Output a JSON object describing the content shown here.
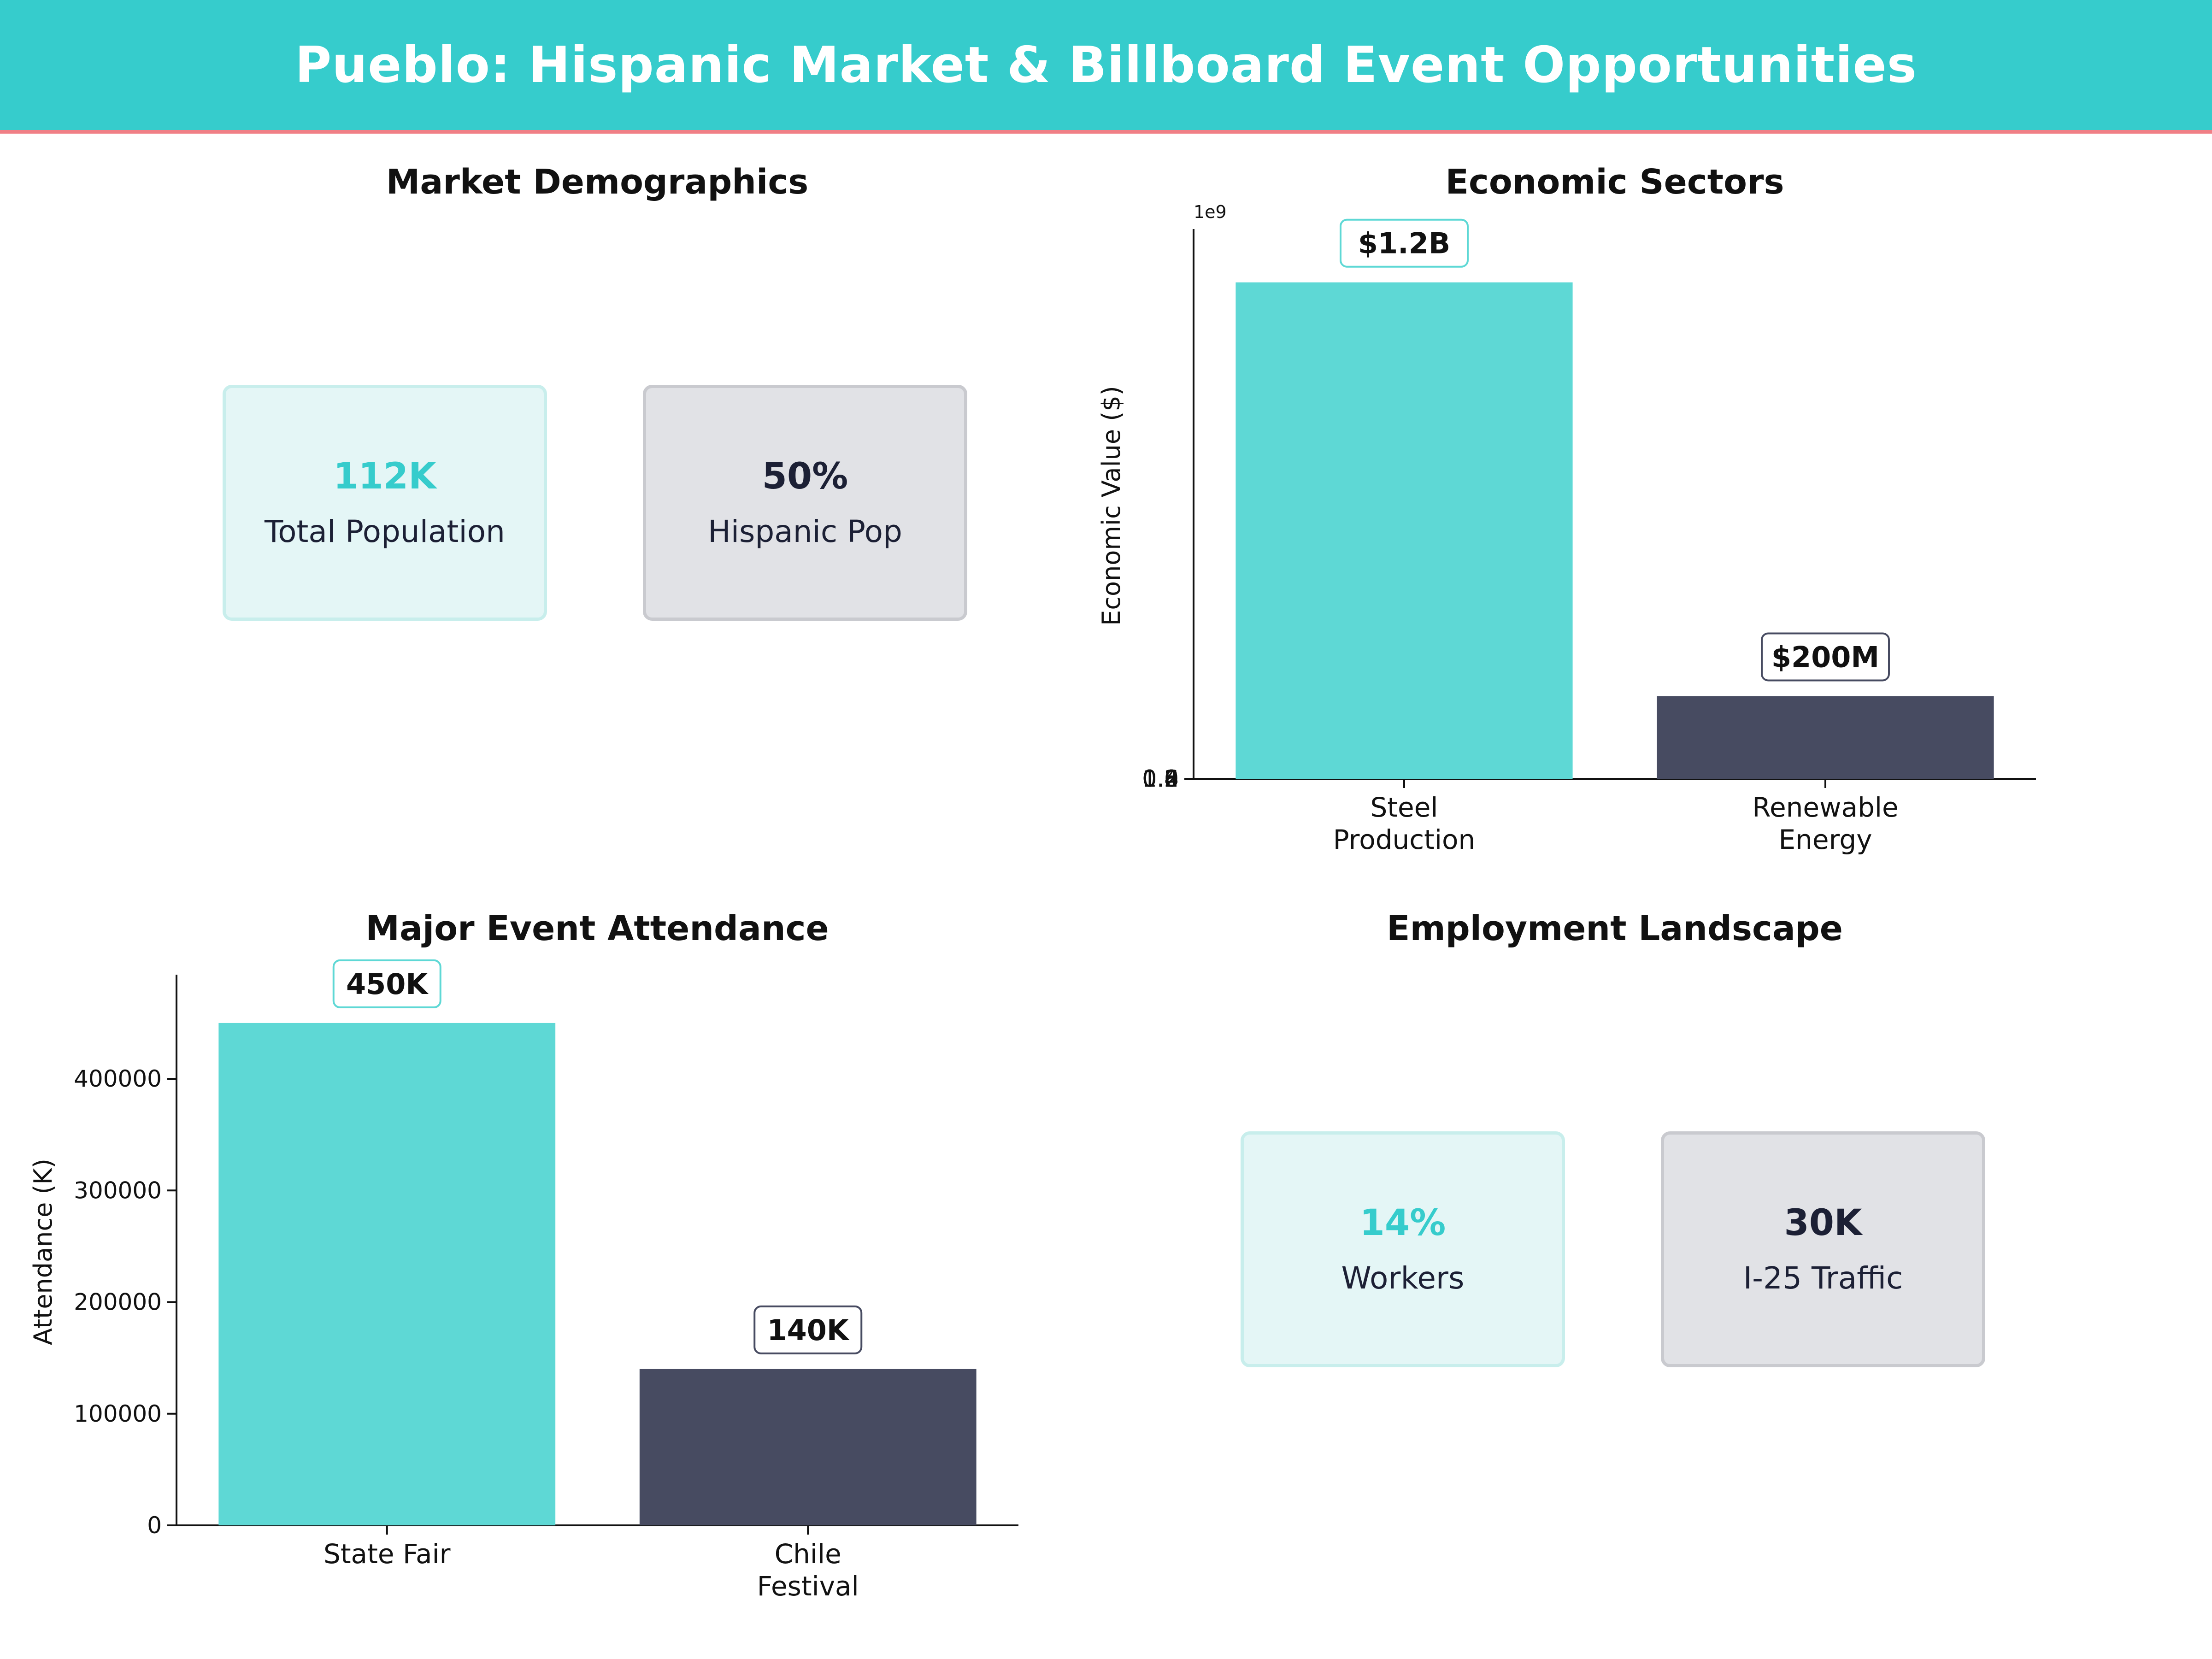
{
  "title": "Pueblo: Hispanic Market & Billboard Event Opportunities",
  "colors": {
    "teal": "#5ED8D5",
    "navy": "#474B61",
    "header_bg": "#36CCCC",
    "accent_line": "#F07F86",
    "card_teal_text": "#36CCCC",
    "card_navy_text": "#1C2035"
  },
  "demographics": {
    "title": "Market Demographics",
    "cards": [
      {
        "value": "112K",
        "label": "Total Population"
      },
      {
        "value": "50%",
        "label": "Hispanic Pop"
      }
    ]
  },
  "employment": {
    "title": "Employment Landscape",
    "cards": [
      {
        "value": "14%",
        "label": "Workers"
      },
      {
        "value": "30K",
        "label": "I-25 Traffic"
      }
    ]
  },
  "chart_data": [
    {
      "type": "bar",
      "title": "Economic Sectors",
      "categories": [
        "Steel\nProduction",
        "Renewable\nEnergy"
      ],
      "values": [
        1200000000,
        200000000
      ],
      "data_labels": [
        "$1.2B",
        "$200M"
      ],
      "ylabel": "Economic Value ($)",
      "offset_text": "1e9",
      "ylim": [
        0,
        1.32
      ],
      "yticks": [
        0.0,
        0.2,
        0.4,
        0.6,
        0.8,
        1.0,
        1.2
      ],
      "ytick_labels": [
        "0.0",
        "0.2",
        "0.4",
        "0.6",
        "0.8",
        "1.0",
        "1.2"
      ],
      "grid": false
    },
    {
      "type": "bar",
      "title": "Major Event Attendance",
      "categories": [
        "State Fair",
        "Chile\nFestival"
      ],
      "values": [
        450000,
        140000
      ],
      "data_labels": [
        "450K",
        "140K"
      ],
      "ylabel": "Attendance (K)",
      "ylim": [
        0,
        490000
      ],
      "yticks": [
        0,
        100000,
        200000,
        300000,
        400000
      ],
      "ytick_labels": [
        "0",
        "100000",
        "200000",
        "300000",
        "400000"
      ],
      "grid": false
    }
  ]
}
